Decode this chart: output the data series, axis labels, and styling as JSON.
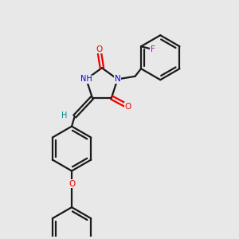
{
  "bg_color": "#e8e8e8",
  "bond_color": "#1a1a1a",
  "N_color": "#0000ee",
  "O_color": "#ee0000",
  "F_color": "#cc00cc",
  "H_color": "#008888",
  "line_width": 1.6,
  "fig_size": [
    3.0,
    3.0
  ],
  "dpi": 100,
  "xlim": [
    0.5,
    4.5
  ],
  "ylim": [
    0.3,
    4.3
  ]
}
